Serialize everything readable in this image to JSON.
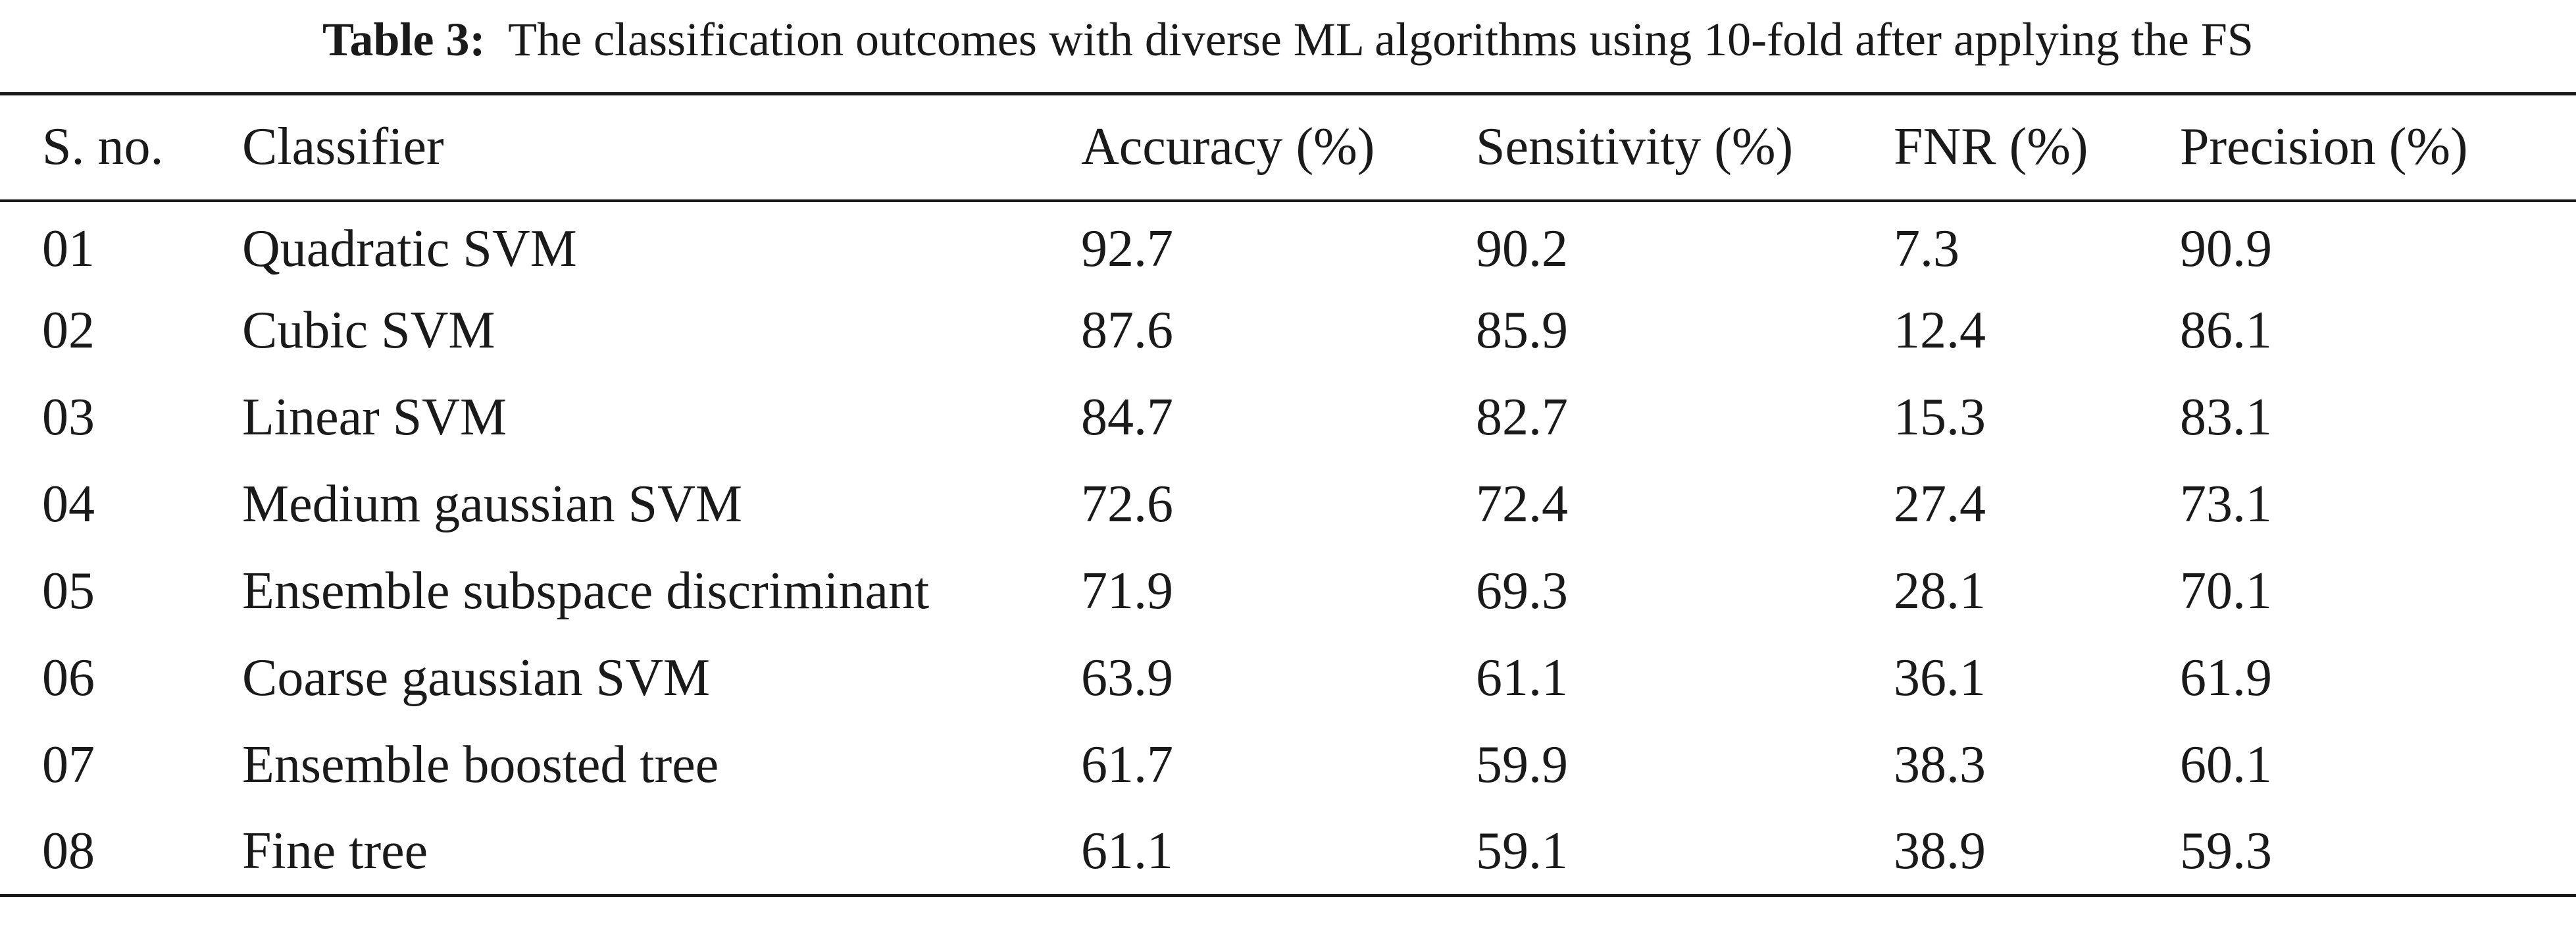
{
  "caption": {
    "label": "Table 3:",
    "text": "The classification outcomes with diverse ML algorithms using 10-fold after applying the FS"
  },
  "table": {
    "headers": [
      "S. no.",
      "Classifier",
      "Accuracy (%)",
      "Sensitivity (%)",
      "FNR (%)",
      "Precision (%)"
    ],
    "rows": [
      [
        "01",
        "Quadratic SVM",
        "92.7",
        "90.2",
        "7.3",
        "90.9"
      ],
      [
        "02",
        "Cubic SVM",
        "87.6",
        "85.9",
        "12.4",
        "86.1"
      ],
      [
        "03",
        "Linear SVM",
        "84.7",
        "82.7",
        "15.3",
        "83.1"
      ],
      [
        "04",
        "Medium gaussian SVM",
        "72.6",
        "72.4",
        "27.4",
        "73.1"
      ],
      [
        "05",
        "Ensemble subspace discriminant",
        "71.9",
        "69.3",
        "28.1",
        "70.1"
      ],
      [
        "06",
        "Coarse gaussian SVM",
        "63.9",
        "61.1",
        "36.1",
        "61.9"
      ],
      [
        "07",
        "Ensemble boosted tree",
        "61.7",
        "59.9",
        "38.3",
        "60.1"
      ],
      [
        "08",
        "Fine tree",
        "61.1",
        "59.1",
        "38.9",
        "59.3"
      ]
    ]
  }
}
